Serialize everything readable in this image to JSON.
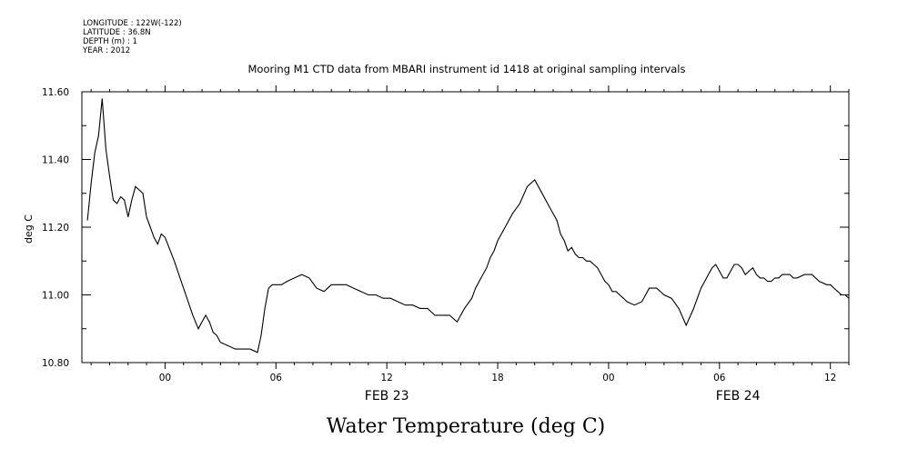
{
  "meta": {
    "longitude": "LONGITUDE : 122W(-122)",
    "latitude": "LATITUDE : 36.8N",
    "depth": "DEPTH (m) : 1",
    "year": "YEAR : 2012"
  },
  "chart_data": {
    "type": "line",
    "title": "Mooring M1 CTD data from MBARI instrument id 1418 at original sampling intervals",
    "ylabel": "deg C",
    "xlabel": "Water Temperature (deg C)",
    "ylim": [
      10.8,
      11.6
    ],
    "yticks": [
      "10.80",
      "11.00",
      "11.20",
      "11.40",
      "11.60"
    ],
    "ytick_values": [
      10.8,
      11.0,
      11.2,
      11.4,
      11.6
    ],
    "xlim_hours_feb22": [
      19.5,
      61
    ],
    "xtick_hours_feb22": [
      24,
      30,
      36,
      42,
      48,
      54,
      60
    ],
    "xticks": [
      "00",
      "06",
      "12",
      "18",
      "00",
      "06",
      "12"
    ],
    "date_labels": [
      "FEB 23",
      "FEB 24"
    ],
    "date_label_hours_feb22": [
      36,
      55
    ],
    "grid": false,
    "series": [
      {
        "x": [
          19.8,
          20.0,
          20.2,
          20.4,
          20.6,
          20.8,
          21.0,
          21.2,
          21.4,
          21.6,
          21.8,
          22.0,
          22.2,
          22.4,
          22.6,
          22.8,
          23.0,
          23.2,
          23.4,
          23.6,
          23.8,
          24.0,
          24.5,
          25.0,
          25.5,
          25.8,
          26.0,
          26.2,
          26.4,
          26.6,
          26.8,
          27.0,
          27.4,
          27.8,
          28.2,
          28.6,
          29.0,
          29.2,
          29.4,
          29.6,
          29.8,
          30.0,
          30.3,
          30.6,
          31.0,
          31.4,
          31.8,
          32.2,
          32.6,
          33.0,
          33.4,
          33.8,
          34.2,
          34.6,
          35.0,
          35.4,
          35.8,
          36.2,
          36.6,
          37.0,
          37.4,
          37.8,
          38.2,
          38.6,
          39.0,
          39.4,
          39.8,
          40.2,
          40.6,
          40.8,
          41.0,
          41.2,
          41.4,
          41.6,
          41.8,
          42.0,
          42.4,
          42.8,
          43.2,
          43.6,
          44.0,
          44.4,
          44.8,
          45.0,
          45.2,
          45.4,
          45.6,
          45.8,
          46.0,
          46.2,
          46.4,
          46.6,
          46.8,
          47.0,
          47.2,
          47.4,
          47.6,
          47.8,
          48.0,
          48.2,
          48.4,
          48.6,
          48.8,
          49.0,
          49.4,
          49.8,
          50.2,
          50.6,
          51.0,
          51.4,
          51.8,
          52.2,
          52.6,
          53.0,
          53.2,
          53.4,
          53.6,
          53.8,
          54.0,
          54.2,
          54.4,
          54.6,
          54.8,
          55.0,
          55.2,
          55.4,
          55.6,
          55.8,
          56.0,
          56.2,
          56.4,
          56.6,
          56.8,
          57.0,
          57.2,
          57.4,
          57.6,
          57.8,
          58.0,
          58.2,
          58.6,
          59.0,
          59.4,
          59.8,
          60.0,
          60.2,
          60.4,
          60.6,
          60.8,
          61.0
        ],
        "values": [
          11.22,
          11.33,
          11.42,
          11.47,
          11.58,
          11.43,
          11.35,
          11.28,
          11.27,
          11.29,
          11.28,
          11.23,
          11.28,
          11.32,
          11.31,
          11.3,
          11.23,
          11.2,
          11.17,
          11.15,
          11.18,
          11.17,
          11.1,
          11.02,
          10.94,
          10.9,
          10.92,
          10.94,
          10.92,
          10.89,
          10.88,
          10.86,
          10.85,
          10.84,
          10.84,
          10.84,
          10.83,
          10.88,
          10.96,
          11.02,
          11.03,
          11.03,
          11.03,
          11.04,
          11.05,
          11.06,
          11.05,
          11.02,
          11.01,
          11.03,
          11.03,
          11.03,
          11.02,
          11.01,
          11.0,
          11.0,
          10.99,
          10.99,
          10.98,
          10.97,
          10.97,
          10.96,
          10.96,
          10.94,
          10.94,
          10.94,
          10.92,
          10.96,
          10.99,
          11.02,
          11.04,
          11.06,
          11.08,
          11.11,
          11.13,
          11.16,
          11.2,
          11.24,
          11.27,
          11.32,
          11.34,
          11.3,
          11.26,
          11.24,
          11.22,
          11.18,
          11.16,
          11.13,
          11.14,
          11.12,
          11.11,
          11.11,
          11.1,
          11.1,
          11.09,
          11.08,
          11.06,
          11.04,
          11.03,
          11.01,
          11.01,
          11.0,
          10.99,
          10.98,
          10.97,
          10.98,
          11.02,
          11.02,
          11.0,
          10.99,
          10.96,
          10.91,
          10.96,
          11.02,
          11.04,
          11.06,
          11.08,
          11.09,
          11.07,
          11.05,
          11.05,
          11.07,
          11.09,
          11.09,
          11.08,
          11.06,
          11.07,
          11.08,
          11.06,
          11.05,
          11.05,
          11.04,
          11.04,
          11.05,
          11.05,
          11.06,
          11.06,
          11.06,
          11.05,
          11.05,
          11.06,
          11.06,
          11.04,
          11.03,
          11.03,
          11.02,
          11.01,
          11.0,
          11.0,
          10.99
        ]
      }
    ]
  }
}
